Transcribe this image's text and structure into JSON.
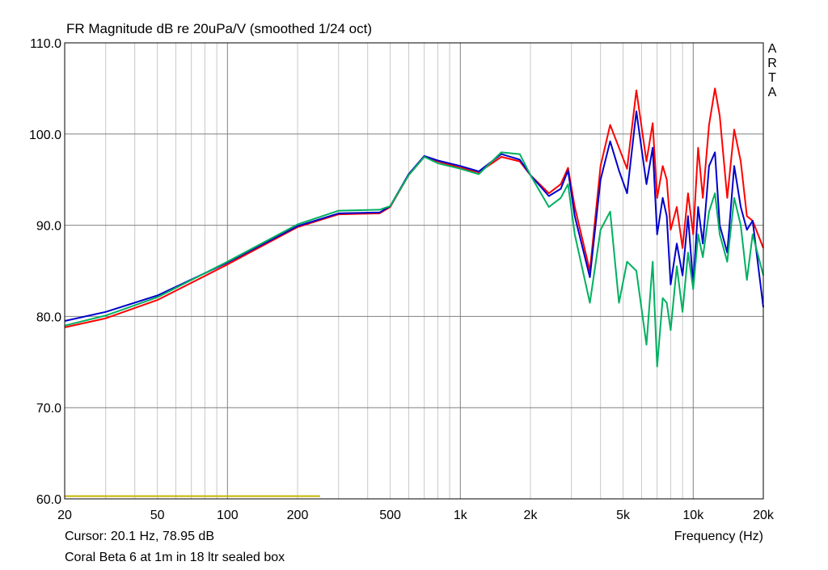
{
  "chart_data": {
    "type": "line",
    "title": "FR Magnitude dB re 20uPa/V (smoothed 1/24 oct)",
    "xlabel": "Frequency (Hz)",
    "ylabel": "",
    "x_scale": "log",
    "xlim": [
      20,
      20000
    ],
    "ylim": [
      60,
      110
    ],
    "x_ticks": [
      20,
      50,
      100,
      200,
      500,
      1000,
      2000,
      5000,
      10000,
      20000
    ],
    "x_tick_labels": [
      "20",
      "50",
      "100",
      "200",
      "500",
      "1k",
      "2k",
      "5k",
      "10k",
      "20k"
    ],
    "y_ticks": [
      60,
      70,
      80,
      90,
      100,
      110
    ],
    "y_tick_labels": [
      "60.0",
      "70.0",
      "80.0",
      "90.0",
      "100.0",
      "110.0"
    ],
    "grid": true,
    "watermark": "ARTA",
    "cursor_text": "Cursor: 20.1 Hz, 78.95 dB",
    "caption": "Coral Beta 6 at 1m in 18 ltr sealed box",
    "series": [
      {
        "color": "#ff0000",
        "x": [
          20,
          30,
          50,
          100,
          200,
          300,
          450,
          500,
          600,
          700,
          800,
          1000,
          1200,
          1500,
          1800,
          2000,
          2400,
          2700,
          2900,
          3100,
          3600,
          4000,
          4400,
          4800,
          5200,
          5700,
          6300,
          6700,
          7000,
          7400,
          7700,
          8000,
          8500,
          9000,
          9500,
          10000,
          10500,
          11000,
          11700,
          12400,
          13000,
          14000,
          15000,
          16000,
          17000,
          18000,
          20000
        ],
        "y": [
          78.8,
          79.8,
          81.8,
          85.7,
          89.8,
          91.2,
          91.3,
          92.0,
          95.5,
          97.5,
          97.0,
          96.3,
          95.8,
          97.5,
          97.0,
          95.5,
          93.5,
          94.5,
          96.3,
          92.0,
          85.0,
          96.5,
          101.0,
          98.5,
          96.2,
          104.8,
          97.0,
          101.2,
          93.0,
          96.5,
          95.0,
          89.5,
          92.0,
          87.5,
          93.5,
          89.0,
          98.5,
          93.0,
          101.0,
          105.0,
          102.0,
          93.0,
          100.5,
          97.0,
          91.0,
          90.5,
          87.5
        ]
      },
      {
        "color": "#0000cc",
        "x": [
          20,
          30,
          50,
          100,
          200,
          300,
          450,
          500,
          600,
          700,
          800,
          1000,
          1200,
          1500,
          1800,
          2000,
          2400,
          2700,
          2900,
          3100,
          3600,
          4000,
          4400,
          4800,
          5200,
          5700,
          6300,
          6700,
          7000,
          7400,
          7700,
          8000,
          8500,
          9000,
          9500,
          10000,
          10500,
          11000,
          11700,
          12400,
          13000,
          14000,
          15000,
          16000,
          17000,
          18000,
          20000
        ],
        "y": [
          79.5,
          80.5,
          82.3,
          85.9,
          89.9,
          91.3,
          91.4,
          92.1,
          95.6,
          97.6,
          97.1,
          96.5,
          95.9,
          97.8,
          97.2,
          95.5,
          93.2,
          94.0,
          96.0,
          91.0,
          84.3,
          95.0,
          99.2,
          96.0,
          93.5,
          102.5,
          94.5,
          98.5,
          89.0,
          93.0,
          91.0,
          83.5,
          88.0,
          84.5,
          91.0,
          83.5,
          92.0,
          88.0,
          96.5,
          98.0,
          90.0,
          87.0,
          96.5,
          92.0,
          89.5,
          90.5,
          81.0
        ]
      },
      {
        "color": "#00b060",
        "x": [
          20,
          30,
          50,
          100,
          200,
          300,
          450,
          500,
          600,
          700,
          800,
          1000,
          1200,
          1500,
          1800,
          2000,
          2400,
          2700,
          2900,
          3100,
          3600,
          4000,
          4400,
          4800,
          5200,
          5700,
          6300,
          6700,
          7000,
          7400,
          7700,
          8000,
          8500,
          9000,
          9500,
          10000,
          10500,
          11000,
          11700,
          12400,
          13000,
          14000,
          15000,
          16000,
          17000,
          18000,
          20000
        ],
        "y": [
          79.0,
          80.1,
          82.1,
          86.0,
          90.1,
          91.6,
          91.7,
          92.1,
          95.5,
          97.5,
          96.8,
          96.2,
          95.6,
          98.0,
          97.8,
          95.5,
          92.0,
          93.0,
          94.5,
          89.0,
          81.5,
          89.5,
          91.5,
          81.5,
          86.0,
          85.0,
          76.9,
          86.0,
          74.5,
          82.0,
          81.5,
          78.5,
          85.5,
          80.5,
          87.0,
          83.0,
          89.0,
          86.5,
          91.5,
          93.5,
          89.0,
          86.0,
          93.0,
          90.0,
          84.0,
          89.0,
          84.5
        ]
      },
      {
        "color": "#c8b400",
        "x": [
          20,
          250
        ],
        "y": [
          60.3,
          60.3
        ]
      }
    ]
  }
}
